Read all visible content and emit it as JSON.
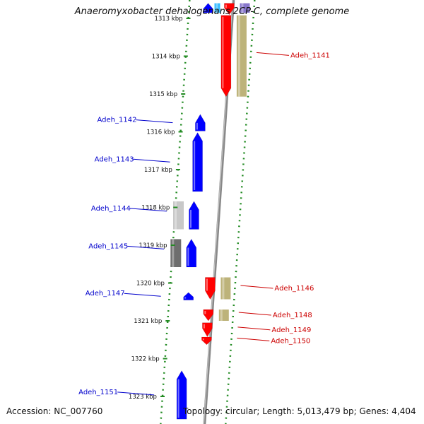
{
  "title": "Anaeromyxobacter dehalogenans 2CP-C, complete genome",
  "footer": {
    "accession": "Accession: NC_007760",
    "summary": "Topology: circular; Length: 5,013,479 bp; Genes: 4,404"
  },
  "colors": {
    "forward_gene": "#0000ff",
    "reverse_gene": "#ff0000",
    "reverse_cds_feature": "#bdb37a",
    "axis_dots": "#228b22",
    "backbone": "#888888",
    "forward_label": "#0000cc",
    "reverse_label": "#cc0000"
  },
  "chart_data": {
    "type": "genome-map",
    "unit": "kbp",
    "view_kbp": [
      1312.6,
      1323.6
    ],
    "ticks": [
      {
        "kbp": 1313,
        "label": "1313 kbp"
      },
      {
        "kbp": 1314,
        "label": "1314 kbp"
      },
      {
        "kbp": 1315,
        "label": "1315 kbp"
      },
      {
        "kbp": 1316,
        "label": "1316 kbp"
      },
      {
        "kbp": 1317,
        "label": "1317 kbp"
      },
      {
        "kbp": 1318,
        "label": "1318 kbp"
      },
      {
        "kbp": 1319,
        "label": "1319 kbp"
      },
      {
        "kbp": 1320,
        "label": "1320 kbp"
      },
      {
        "kbp": 1321,
        "label": "1321 kbp"
      },
      {
        "kbp": 1322,
        "label": "1322 kbp"
      },
      {
        "kbp": 1323,
        "label": "1323 kbp"
      }
    ],
    "forward_genes": [
      {
        "start": 1312.6,
        "end": 1312.85
      },
      {
        "start": 1315.54,
        "end": 1315.98
      },
      {
        "start": 1316.02,
        "end": 1317.58
      },
      {
        "start": 1317.84,
        "end": 1318.58
      },
      {
        "start": 1318.84,
        "end": 1319.58
      },
      {
        "start": 1320.25,
        "end": 1320.45
      },
      {
        "start": 1322.32,
        "end": 1323.6
      }
    ],
    "forward_features": [
      {
        "start": 1312.6,
        "end": 1312.85,
        "shade": "#33bbff"
      },
      {
        "start": 1317.84,
        "end": 1318.58,
        "shade": "#c8c8c8"
      },
      {
        "start": 1318.84,
        "end": 1319.58,
        "shade": "#6e6e6e"
      }
    ],
    "reverse_genes": [
      {
        "start": 1312.6,
        "end": 1312.9
      },
      {
        "start": 1312.92,
        "end": 1315.07
      },
      {
        "start": 1319.85,
        "end": 1320.43
      },
      {
        "start": 1320.7,
        "end": 1321.0
      },
      {
        "start": 1321.05,
        "end": 1321.42
      },
      {
        "start": 1321.43,
        "end": 1321.63
      }
    ],
    "reverse_features": [
      {
        "start": 1312.6,
        "end": 1312.85,
        "shade": "#8877cc"
      },
      {
        "start": 1312.92,
        "end": 1315.07,
        "shade": "#bdb37a"
      },
      {
        "start": 1319.85,
        "end": 1320.43,
        "shade": "#bdb37a"
      },
      {
        "start": 1320.7,
        "end": 1321.0,
        "shade": "#bdb37a"
      }
    ],
    "labels": [
      {
        "text": "Adeh_1141",
        "strand": "reverse",
        "kbp": 1313.98
      },
      {
        "text": "Adeh_1142",
        "strand": "forward",
        "kbp": 1315.76
      },
      {
        "text": "Adeh_1143",
        "strand": "forward",
        "kbp": 1316.8
      },
      {
        "text": "Adeh_1144",
        "strand": "forward",
        "kbp": 1318.1
      },
      {
        "text": "Adeh_1145",
        "strand": "forward",
        "kbp": 1319.1
      },
      {
        "text": "Adeh_1146",
        "strand": "reverse",
        "kbp": 1320.14
      },
      {
        "text": "Adeh_1147",
        "strand": "forward",
        "kbp": 1320.35
      },
      {
        "text": "Adeh_1148",
        "strand": "reverse",
        "kbp": 1320.85
      },
      {
        "text": "Adeh_1149",
        "strand": "reverse",
        "kbp": 1321.24
      },
      {
        "text": "Adeh_1150",
        "strand": "reverse",
        "kbp": 1321.53
      },
      {
        "text": "Adeh_1151",
        "strand": "forward",
        "kbp": 1322.96
      }
    ]
  }
}
